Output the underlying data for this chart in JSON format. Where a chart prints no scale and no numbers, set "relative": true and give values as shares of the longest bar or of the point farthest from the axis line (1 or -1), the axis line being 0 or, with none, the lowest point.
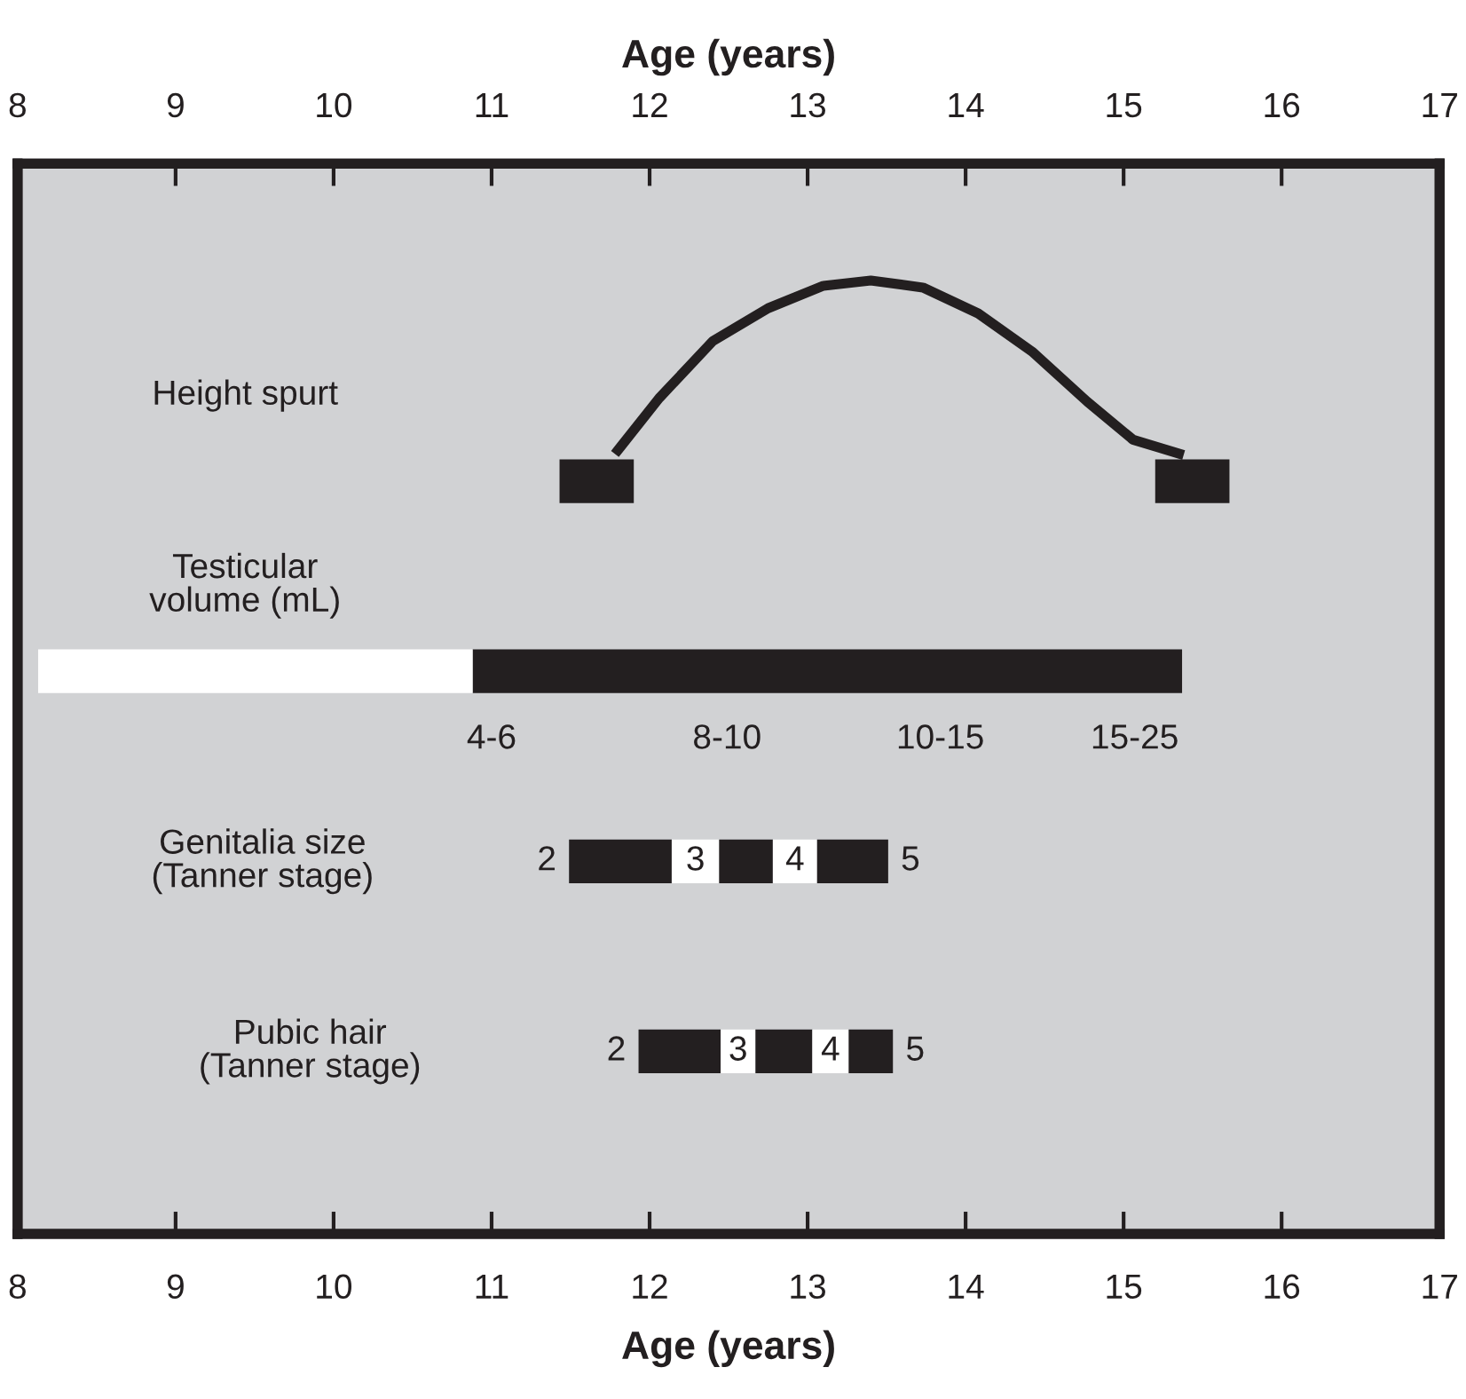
{
  "chart_data": [
    {
      "type": "line",
      "relative": true,
      "xlim": [
        8,
        17
      ],
      "grid": false,
      "line_style": "solid",
      "marker": "none",
      "series": [
        {
          "color": "#231f20",
          "x": [
            11.8,
            12.06,
            12.4,
            12.75,
            13.1,
            13.4,
            13.73,
            14.08,
            14.42,
            14.77,
            15.06,
            15.35
          ],
          "values": [
            0.02,
            0.32,
            0.65,
            0.84,
            0.97,
            1,
            0.96,
            0.81,
            0.59,
            0.3,
            0.08,
            0
          ]
        }
      ]
    },
    {
      "type": "bar",
      "orientation": "horizontal",
      "xlabel": "Age (years)",
      "x2label": "Age (years)",
      "categories": [
        "Height spurt",
        "Testicular\nvolume (mL)",
        "Genitalia size\n(Tanner stage)",
        "Pubic hair\n(Tanner stage)"
      ],
      "xlim": [
        8,
        17
      ],
      "xticks": [
        8,
        9,
        10,
        11,
        12,
        13,
        14,
        15,
        16,
        17
      ],
      "x2lim": [
        8,
        17
      ],
      "x2ticks": [
        8,
        9,
        10,
        11,
        12,
        13,
        14,
        15,
        16,
        17
      ],
      "grid": false,
      "series": [
        {
          "color": "#231f20",
          "base": [
            11.43,
            10.88,
            11.49,
            11.93
          ],
          "values": [
            0.47,
            4.49,
            0.65,
            0.52
          ]
        },
        {
          "color": "#ffffff",
          "base": [
            null,
            8.13,
            12.14,
            12.45
          ],
          "values": [
            null,
            2.75,
            0.3,
            0.22
          ]
        },
        {
          "color": "#231f20",
          "base": [
            15.2,
            null,
            12.44,
            12.67
          ],
          "values": [
            0.47,
            null,
            0.34,
            0.36
          ]
        },
        {
          "color": "#ffffff",
          "base": [
            null,
            null,
            12.78,
            13.03
          ],
          "values": [
            null,
            null,
            0.28,
            0.23
          ]
        },
        {
          "color": "#231f20",
          "base": [
            null,
            null,
            13.06,
            13.26
          ],
          "values": [
            null,
            null,
            0.45,
            0.28
          ]
        }
      ],
      "annotations": [
        "4-6",
        "8-10",
        "10-15",
        "15-25",
        "2",
        "3",
        "4",
        "5",
        "2",
        "3",
        "4",
        "5"
      ]
    }
  ]
}
